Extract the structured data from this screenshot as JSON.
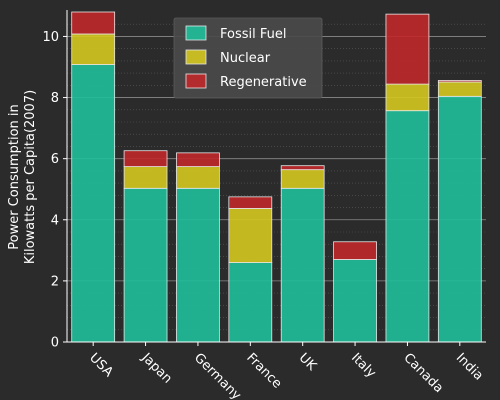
{
  "chart_data": {
    "type": "bar",
    "stacked": true,
    "categories": [
      "USA",
      "Japan",
      "Germany",
      "France",
      "UK",
      "Italy",
      "Canada",
      "India"
    ],
    "series": [
      {
        "name": "Fossil Fuel",
        "color": "#1fbf9a",
        "values": [
          9.08,
          5.03,
          5.03,
          2.6,
          5.03,
          2.7,
          7.57,
          8.04
        ]
      },
      {
        "name": "Nuclear",
        "color": "#d4c81f",
        "values": [
          1.0,
          0.71,
          0.71,
          1.77,
          0.61,
          0.0,
          0.87,
          0.47
        ]
      },
      {
        "name": "Regenerative",
        "color": "#c0282a",
        "values": [
          0.72,
          0.52,
          0.45,
          0.38,
          0.13,
          0.58,
          2.29,
          0.05
        ]
      }
    ],
    "title": "",
    "xlabel": "",
    "ylabel_lines": [
      "Power Consumption in",
      "Kilowatts per Capita(2007)"
    ],
    "ylim": [
      0,
      10.8
    ],
    "yticks": [
      0,
      2,
      4,
      6,
      8,
      10
    ],
    "grid": true,
    "legend_position": "top-center",
    "x_tick_rotation": -45
  }
}
